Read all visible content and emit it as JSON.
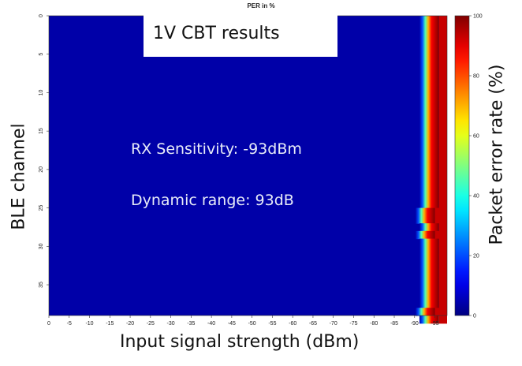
{
  "top_title_clipped": "",
  "chart_title": "PER in %",
  "overlay_label": "1V CBT results",
  "annotations": {
    "sensitivity": "RX Sensitivity: -93dBm",
    "dynamic_range": "Dynamic range: 93dB"
  },
  "chart_data": {
    "type": "heatmap",
    "title": "PER in %",
    "xlabel": "Input signal strength (dBm)",
    "ylabel": "BLE channel",
    "colorbar_label": "Packet error rate (%)",
    "x_ticks": [
      "0",
      "-5",
      "-10",
      "-15",
      "-20",
      "-25",
      "-30",
      "-35",
      "-40",
      "-45",
      "-50",
      "-55",
      "-60",
      "-65",
      "-70",
      "-75",
      "-80",
      "-85",
      "-90",
      "-95"
    ],
    "y_ticks": [
      "0",
      "5",
      "10",
      "15",
      "20",
      "25",
      "30",
      "35"
    ],
    "colorbar_ticks": [
      "100",
      "80",
      "60",
      "40",
      "20",
      "0"
    ],
    "xlim": [
      0,
      -98
    ],
    "ylim": [
      0,
      39
    ],
    "zlim": [
      0,
      100
    ],
    "colormap": "jet",
    "description_values": {
      "per_below_threshold": 0,
      "per_above_threshold": 100,
      "transition_dbm_by_channel": [
        -93,
        -93,
        -93,
        -93,
        -93,
        -93,
        -93,
        -93,
        -93,
        -93,
        -93,
        -93,
        -93,
        -93,
        -93,
        -93,
        -93,
        -93,
        -93,
        -93,
        -93,
        -93,
        -93,
        -93,
        -93,
        -92,
        -92,
        -93,
        -92,
        -93,
        -93,
        -93,
        -93,
        -93,
        -93,
        -93,
        -93,
        -93,
        -92,
        -93
      ]
    }
  }
}
